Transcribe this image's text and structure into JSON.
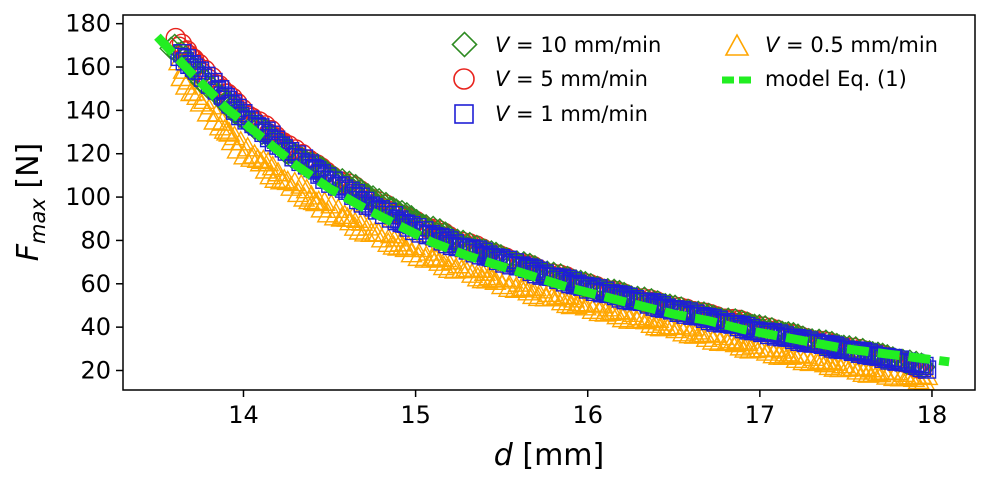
{
  "chart_data": {
    "type": "scatter",
    "title": "",
    "xlabel_var": "d",
    "xlabel_unit": "[mm]",
    "ylabel_var": "F",
    "ylabel_sub": "max",
    "ylabel_unit": "[N]",
    "xlim": [
      13.3,
      18.25
    ],
    "ylim": [
      11,
      184
    ],
    "xticks": [
      14,
      15,
      16,
      17,
      18
    ],
    "yticks": [
      20,
      40,
      60,
      80,
      100,
      120,
      140,
      160,
      180
    ],
    "grid": false,
    "legend_position": "top-right",
    "series": [
      {
        "name_var": "V",
        "name_rest": " = 10 mm/min",
        "marker": "diamond",
        "color": "#2e8b22",
        "x": [
          13.58,
          13.7,
          13.9,
          14.1,
          14.3,
          14.6,
          14.9,
          15.2,
          15.5,
          15.8,
          16.1,
          16.4,
          16.7,
          17.0,
          17.3,
          17.6,
          17.95
        ],
        "y": [
          170,
          160,
          143,
          131,
          119,
          106,
          93,
          81,
          72,
          64,
          57,
          51,
          45,
          40,
          34,
          29,
          22
        ]
      },
      {
        "name_var": "V",
        "name_rest": " = 5 mm/min",
        "marker": "circle",
        "color": "#e8231d",
        "x": [
          13.6,
          13.72,
          13.9,
          14.1,
          14.3,
          14.5,
          14.7,
          14.9,
          15.2,
          15.5,
          15.8,
          16.1,
          16.5,
          16.9,
          17.3,
          17.7,
          17.95
        ],
        "y": [
          172,
          163,
          147,
          133,
          121,
          110,
          101,
          92,
          81,
          72,
          64,
          57,
          49,
          42,
          34,
          27,
          21
        ]
      },
      {
        "name_var": "V",
        "name_rest": " = 1 mm/min",
        "marker": "square",
        "color": "#1f1fd6",
        "x": [
          13.62,
          13.75,
          13.9,
          14.1,
          14.3,
          14.5,
          14.7,
          14.9,
          15.1,
          15.3,
          15.5,
          15.8,
          16.1,
          16.4,
          16.7,
          17.0,
          17.3,
          17.6,
          17.9,
          17.98
        ],
        "y": [
          166,
          158,
          145,
          131,
          119,
          108,
          98,
          89,
          82,
          76,
          71,
          63,
          56,
          50,
          44,
          38,
          33,
          28,
          23,
          21
        ]
      },
      {
        "name_var": "V",
        "name_rest": " = 0.5 mm/min",
        "marker": "triangle",
        "color": "#ffa600",
        "x": [
          13.62,
          13.7,
          13.85,
          14.0,
          14.2,
          14.4,
          14.6,
          14.8,
          15.0,
          15.2,
          15.5,
          15.8,
          16.1,
          16.4,
          16.7,
          17.0,
          17.3,
          17.6,
          17.9,
          17.98
        ],
        "y": [
          160,
          150,
          135,
          122,
          110,
          99,
          90,
          82,
          75,
          69,
          61,
          54,
          48,
          42,
          36,
          30,
          25,
          20,
          17,
          16
        ]
      },
      {
        "name": "model Eq. (1)",
        "marker": "dashed-line",
        "color": "#22ee22",
        "x": [
          13.5,
          13.7,
          13.9,
          14.1,
          14.3,
          14.5,
          14.7,
          14.9,
          15.1,
          15.3,
          15.5,
          15.7,
          15.9,
          16.1,
          16.3,
          16.5,
          16.7,
          16.9,
          17.1,
          17.3,
          17.5,
          17.7,
          17.9,
          18.1
        ],
        "y": [
          174,
          157,
          141,
          128,
          115,
          104,
          95,
          87,
          79,
          73,
          68,
          63,
          58,
          54,
          50,
          46,
          43,
          39,
          36,
          33,
          30,
          28,
          26,
          24
        ]
      }
    ]
  }
}
